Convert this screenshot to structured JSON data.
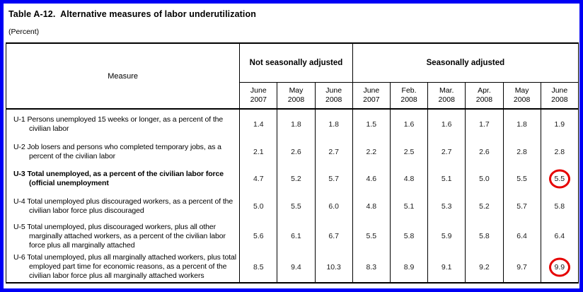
{
  "page": {
    "title": "Table A-12.  Alternative measures of labor underutilization",
    "subtitle": "(Percent)"
  },
  "colors": {
    "frame_blue": "#0000f5",
    "annotation_red": "#e60000",
    "table_border": "#000000"
  },
  "table": {
    "measure_header": "Measure",
    "groups": [
      {
        "label": "Not seasonally adjusted",
        "column_count": 3
      },
      {
        "label": "Seasonally adjusted",
        "column_count": 6
      }
    ],
    "month_labels": [
      "June\n2007",
      "May\n2008",
      "June\n2008",
      "June\n2007",
      "Feb.\n2008",
      "Mar.\n2008",
      "Apr.\n2008",
      "May\n2008",
      "June\n2008"
    ],
    "rows": [
      {
        "id": "U-1",
        "label": "Persons unemployed 15 weeks or longer, as a percent of the civilian labor force",
        "values": [
          "1.4",
          "1.8",
          "1.8",
          "1.5",
          "1.6",
          "1.6",
          "1.7",
          "1.8",
          "1.9"
        ]
      },
      {
        "id": "U-2",
        "label": "Job losers and persons who completed temporary jobs, as a percent of the civilian labor force",
        "values": [
          "2.1",
          "2.6",
          "2.7",
          "2.2",
          "2.5",
          "2.7",
          "2.6",
          "2.8",
          "2.8"
        ]
      },
      {
        "id": "U-3",
        "label": "Total unemployed, as a percent of the civilian labor force (official unemployment rate)",
        "bold": true,
        "circled_value_index": 8,
        "values": [
          "4.7",
          "5.2",
          "5.7",
          "4.6",
          "4.8",
          "5.1",
          "5.0",
          "5.5",
          "5.5"
        ]
      },
      {
        "id": "U-4",
        "label": "Total unemployed plus discouraged workers, as a percent of the civilian labor force plus discouraged workers",
        "values": [
          "5.0",
          "5.5",
          "6.0",
          "4.8",
          "5.1",
          "5.3",
          "5.2",
          "5.7",
          "5.8"
        ]
      },
      {
        "id": "U-5",
        "label": "Total unemployed, plus discouraged workers, plus all other marginally attached workers, as a percent of the civilian labor force plus all marginally attached workers",
        "values": [
          "5.6",
          "6.1",
          "6.7",
          "5.5",
          "5.8",
          "5.9",
          "5.8",
          "6.4",
          "6.4"
        ]
      },
      {
        "id": "U-6",
        "label": "Total unemployed, plus all marginally attached workers, plus total employed part time for economic reasons, as a percent of the civilian labor force plus all marginally attached workers",
        "circled_value_index": 8,
        "no_leader": true,
        "values": [
          "8.5",
          "9.4",
          "10.3",
          "8.3",
          "8.9",
          "9.1",
          "9.2",
          "9.7",
          "9.9"
        ]
      }
    ]
  }
}
